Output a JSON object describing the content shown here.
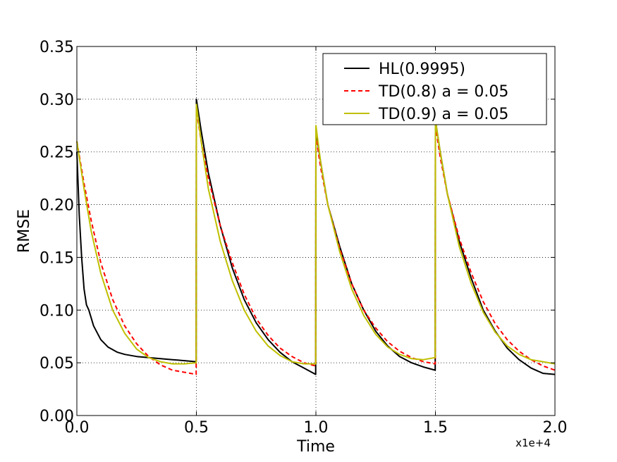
{
  "chart_data": {
    "type": "line",
    "title": "",
    "xlabel": "Time",
    "ylabel": "RMSE",
    "x_multiplier_label": "x1e+4",
    "xlim": [
      0,
      2
    ],
    "ylim": [
      0,
      0.35
    ],
    "x_ticks": [
      0.0,
      0.5,
      1.0,
      1.5,
      2.0
    ],
    "x_tick_labels": [
      "0.0",
      "0.5",
      "1.0",
      "1.5",
      "2.0"
    ],
    "y_ticks": [
      0.0,
      0.05,
      0.1,
      0.15,
      0.2,
      0.25,
      0.3,
      0.35
    ],
    "y_tick_labels": [
      "0.00",
      "0.05",
      "0.10",
      "0.15",
      "0.20",
      "0.25",
      "0.30",
      "0.35"
    ],
    "grid": true,
    "legend_position": "top-right",
    "series": [
      {
        "name": "HL(0.9995)",
        "color": "#000000",
        "style": "solid",
        "x": [
          0.0,
          0.01,
          0.02,
          0.03,
          0.04,
          0.05,
          0.07,
          0.1,
          0.13,
          0.17,
          0.2,
          0.25,
          0.3,
          0.35,
          0.4,
          0.45,
          0.499,
          0.5,
          0.52,
          0.55,
          0.6,
          0.65,
          0.7,
          0.75,
          0.8,
          0.85,
          0.9,
          0.95,
          0.999,
          1.0,
          1.02,
          1.05,
          1.1,
          1.15,
          1.2,
          1.25,
          1.3,
          1.35,
          1.4,
          1.45,
          1.499,
          1.5,
          1.52,
          1.55,
          1.6,
          1.65,
          1.7,
          1.75,
          1.8,
          1.85,
          1.9,
          1.95,
          2.0
        ],
        "y": [
          0.25,
          0.19,
          0.15,
          0.12,
          0.105,
          0.1,
          0.085,
          0.072,
          0.065,
          0.06,
          0.058,
          0.056,
          0.055,
          0.054,
          0.053,
          0.052,
          0.051,
          0.3,
          0.27,
          0.23,
          0.18,
          0.14,
          0.11,
          0.088,
          0.072,
          0.06,
          0.051,
          0.045,
          0.039,
          0.27,
          0.24,
          0.2,
          0.16,
          0.125,
          0.1,
          0.08,
          0.066,
          0.056,
          0.05,
          0.046,
          0.043,
          0.28,
          0.25,
          0.21,
          0.165,
          0.13,
          0.1,
          0.08,
          0.064,
          0.053,
          0.045,
          0.04,
          0.039
        ]
      },
      {
        "name": "TD(0.8) a = 0.05",
        "color": "#ff0000",
        "style": "dashed",
        "x": [
          0.0,
          0.03,
          0.06,
          0.1,
          0.15,
          0.2,
          0.25,
          0.3,
          0.35,
          0.4,
          0.45,
          0.499,
          0.5,
          0.52,
          0.55,
          0.6,
          0.65,
          0.7,
          0.75,
          0.8,
          0.85,
          0.9,
          0.95,
          0.999,
          1.0,
          1.02,
          1.05,
          1.1,
          1.15,
          1.2,
          1.25,
          1.3,
          1.35,
          1.4,
          1.45,
          1.499,
          1.5,
          1.52,
          1.55,
          1.6,
          1.65,
          1.7,
          1.75,
          1.8,
          1.85,
          1.9,
          1.95,
          2.0
        ],
        "y": [
          0.26,
          0.22,
          0.185,
          0.145,
          0.11,
          0.085,
          0.068,
          0.056,
          0.048,
          0.043,
          0.041,
          0.039,
          0.29,
          0.26,
          0.225,
          0.18,
          0.145,
          0.115,
          0.092,
          0.076,
          0.064,
          0.056,
          0.05,
          0.047,
          0.265,
          0.235,
          0.2,
          0.158,
          0.125,
          0.1,
          0.083,
          0.07,
          0.061,
          0.055,
          0.051,
          0.049,
          0.275,
          0.245,
          0.21,
          0.168,
          0.135,
          0.108,
          0.087,
          0.072,
          0.061,
          0.053,
          0.047,
          0.043
        ]
      },
      {
        "name": "TD(0.9) a = 0.05",
        "color": "#bfbf00",
        "style": "solid",
        "x": [
          0.0,
          0.03,
          0.06,
          0.1,
          0.15,
          0.2,
          0.25,
          0.3,
          0.35,
          0.4,
          0.45,
          0.499,
          0.5,
          0.52,
          0.55,
          0.6,
          0.65,
          0.7,
          0.75,
          0.8,
          0.85,
          0.9,
          0.95,
          0.999,
          1.0,
          1.02,
          1.05,
          1.1,
          1.15,
          1.2,
          1.25,
          1.3,
          1.35,
          1.4,
          1.45,
          1.499,
          1.5,
          1.52,
          1.55,
          1.6,
          1.65,
          1.7,
          1.75,
          1.8,
          1.85,
          1.9,
          1.95,
          2.0
        ],
        "y": [
          0.26,
          0.215,
          0.175,
          0.135,
          0.1,
          0.078,
          0.063,
          0.055,
          0.051,
          0.049,
          0.049,
          0.05,
          0.295,
          0.26,
          0.215,
          0.165,
          0.128,
          0.1,
          0.08,
          0.066,
          0.057,
          0.051,
          0.049,
          0.049,
          0.275,
          0.24,
          0.2,
          0.155,
          0.12,
          0.095,
          0.077,
          0.065,
          0.058,
          0.054,
          0.053,
          0.055,
          0.28,
          0.25,
          0.21,
          0.16,
          0.125,
          0.098,
          0.079,
          0.066,
          0.058,
          0.053,
          0.051,
          0.049
        ]
      }
    ]
  }
}
